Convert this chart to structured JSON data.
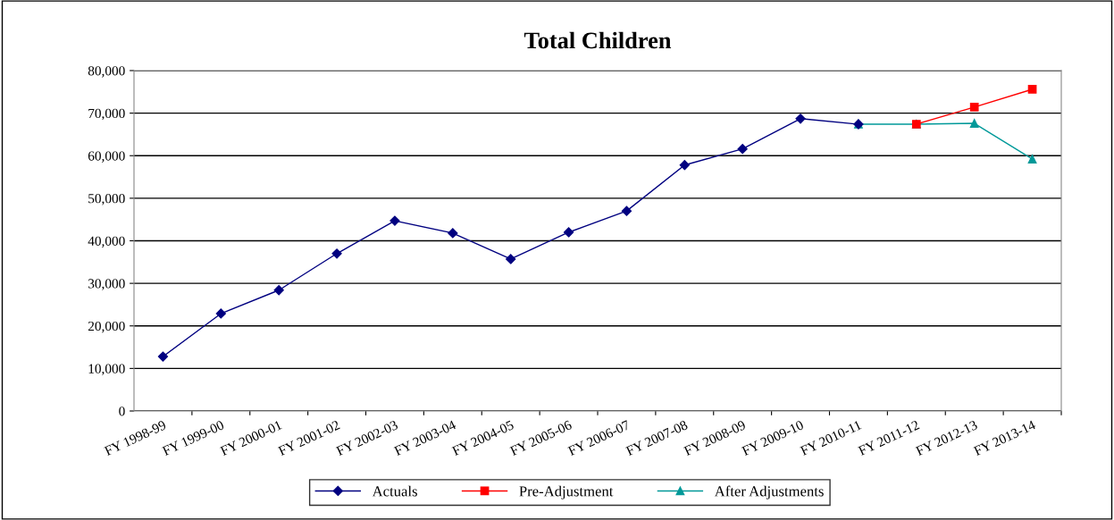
{
  "chart_data": {
    "type": "line",
    "title": "Total Children",
    "categories": [
      "FY 1998-99",
      "FY 1999-00",
      "FY 2000-01",
      "FY 2001-02",
      "FY 2002-03",
      "FY 2003-04",
      "FY 2004-05",
      "FY 2005-06",
      "FY 2006-07",
      "FY 2007-08",
      "FY 2008-09",
      "FY 2009-10",
      "FY 2010-11",
      "FY 2011-12",
      "FY 2012-13",
      "FY 2013-14"
    ],
    "series": [
      {
        "name": "Actuals",
        "color": "#000080",
        "marker": "diamond",
        "values": [
          12800,
          22900,
          28400,
          37000,
          44700,
          41800,
          35700,
          42000,
          47000,
          57800,
          61600,
          68700,
          67400,
          null,
          null,
          null
        ]
      },
      {
        "name": "Pre-Adjustment",
        "color": "#ff0000",
        "marker": "square",
        "values": [
          null,
          null,
          null,
          null,
          null,
          null,
          null,
          null,
          null,
          null,
          null,
          null,
          null,
          67400,
          71400,
          75600
        ]
      },
      {
        "name": "After Adjustments",
        "color": "#009999",
        "marker": "triangle",
        "values": [
          null,
          null,
          null,
          null,
          null,
          null,
          null,
          null,
          null,
          null,
          null,
          null,
          67400,
          67400,
          67600,
          59200
        ]
      }
    ],
    "ylim": [
      0,
      80000
    ],
    "yticks": [
      {
        "value": 0,
        "label": "0"
      },
      {
        "value": 10000,
        "label": "10,000"
      },
      {
        "value": 20000,
        "label": "20,000"
      },
      {
        "value": 30000,
        "label": "30,000"
      },
      {
        "value": 40000,
        "label": "40,000"
      },
      {
        "value": 50000,
        "label": "50,000"
      },
      {
        "value": 60000,
        "label": "60,000"
      },
      {
        "value": 70000,
        "label": "70,000"
      },
      {
        "value": 80000,
        "label": "80,000"
      }
    ],
    "grid": "y",
    "legend": "bottom",
    "line_style": "solid"
  }
}
